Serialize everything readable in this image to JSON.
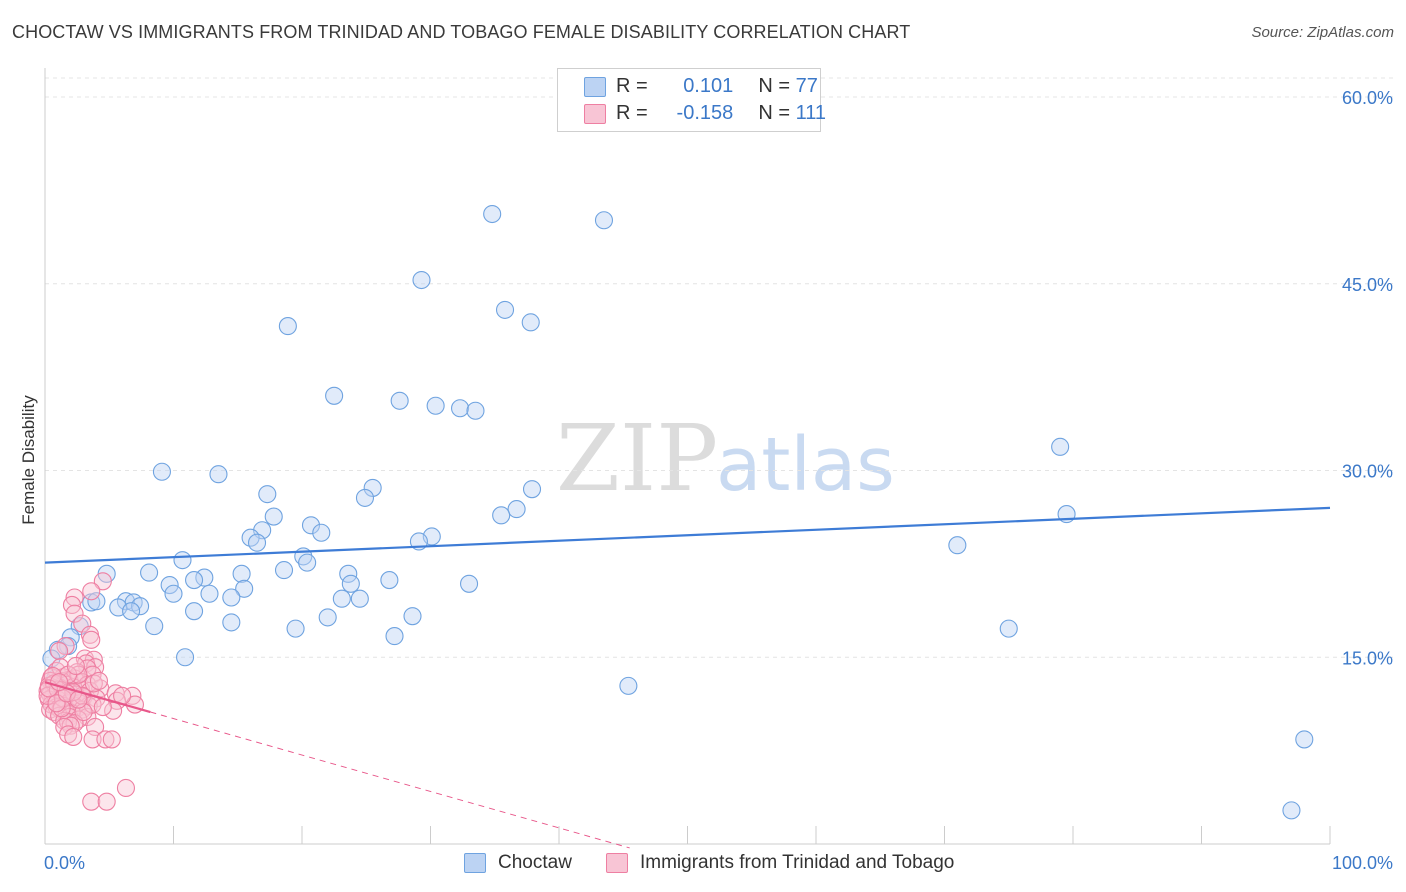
{
  "title": "CHOCTAW VS IMMIGRANTS FROM TRINIDAD AND TOBAGO FEMALE DISABILITY CORRELATION CHART",
  "source": "Source: ZipAtlas.com",
  "watermark": {
    "zip": "ZIP",
    "atlas": "atlas"
  },
  "legend": {
    "rows": [
      {
        "r_label": "R =",
        "r_value": "0.101",
        "n_label": "N =",
        "n_value": "77",
        "color": "#6fa3e0",
        "fill": "#bcd3f3"
      },
      {
        "r_label": "R =",
        "r_value": "-0.158",
        "n_label": "N =",
        "n_value": "111",
        "color": "#ee7fa2",
        "fill": "#f8c5d5"
      }
    ]
  },
  "bottom_legend": [
    {
      "label": "Choctaw",
      "color": "#6fa3e0",
      "fill": "#bcd3f3"
    },
    {
      "label": "Immigrants from Trinidad and Tobago",
      "color": "#ee7fa2",
      "fill": "#f8c5d5"
    }
  ],
  "chart_data": {
    "type": "scatter",
    "title": "CHOCTAW VS IMMIGRANTS FROM TRINIDAD AND TOBAGO FEMALE DISABILITY CORRELATION CHART",
    "xlabel": "",
    "ylabel": "Female Disability",
    "xlim": [
      0,
      100
    ],
    "ylim": [
      0,
      60
    ],
    "x_tick_labels": [
      "0.0%",
      "100.0%"
    ],
    "y_ticks": [
      15,
      30,
      45,
      60
    ],
    "y_tick_labels": [
      "15.0%",
      "30.0%",
      "45.0%",
      "60.0%"
    ],
    "grid": true,
    "legend_position": "top-center",
    "colors": {
      "choctaw": "#3e7cd6",
      "trinidad": "#e8578a",
      "tick_label": "#3b78c8"
    },
    "series": [
      {
        "name": "Choctaw",
        "color": "#6fa3e0",
        "trend": {
          "x": [
            0,
            100
          ],
          "y": [
            22.6,
            27.0
          ],
          "dashed_x": null
        },
        "points": [
          [
            34.8,
            50.6
          ],
          [
            43.5,
            50.1
          ],
          [
            29.3,
            45.3
          ],
          [
            35.8,
            42.9
          ],
          [
            37.8,
            41.9
          ],
          [
            18.9,
            41.6
          ],
          [
            22.5,
            36.0
          ],
          [
            27.6,
            35.6
          ],
          [
            30.4,
            35.2
          ],
          [
            32.3,
            35.0
          ],
          [
            33.5,
            34.8
          ],
          [
            79.0,
            31.9
          ],
          [
            9.1,
            29.9
          ],
          [
            13.5,
            29.7
          ],
          [
            25.5,
            28.6
          ],
          [
            17.3,
            28.1
          ],
          [
            24.9,
            27.8
          ],
          [
            37.9,
            28.5
          ],
          [
            36.7,
            26.9
          ],
          [
            35.5,
            26.4
          ],
          [
            79.5,
            26.5
          ],
          [
            17.8,
            26.3
          ],
          [
            20.7,
            25.6
          ],
          [
            16.9,
            25.2
          ],
          [
            21.5,
            25.0
          ],
          [
            16.0,
            24.6
          ],
          [
            30.1,
            24.7
          ],
          [
            29.1,
            24.3
          ],
          [
            16.5,
            24.2
          ],
          [
            71.0,
            24.0
          ],
          [
            10.7,
            22.8
          ],
          [
            20.1,
            23.1
          ],
          [
            20.4,
            22.6
          ],
          [
            18.6,
            22.0
          ],
          [
            23.6,
            21.7
          ],
          [
            8.1,
            21.8
          ],
          [
            12.4,
            21.4
          ],
          [
            15.3,
            21.7
          ],
          [
            4.8,
            21.7
          ],
          [
            26.8,
            21.2
          ],
          [
            11.6,
            21.2
          ],
          [
            23.8,
            20.9
          ],
          [
            9.7,
            20.8
          ],
          [
            33.0,
            20.9
          ],
          [
            15.5,
            20.5
          ],
          [
            12.8,
            20.1
          ],
          [
            10.0,
            20.1
          ],
          [
            14.5,
            19.8
          ],
          [
            23.1,
            19.7
          ],
          [
            24.5,
            19.7
          ],
          [
            6.3,
            19.5
          ],
          [
            3.6,
            19.4
          ],
          [
            4.0,
            19.5
          ],
          [
            6.9,
            19.4
          ],
          [
            7.4,
            19.1
          ],
          [
            5.7,
            19.0
          ],
          [
            6.7,
            18.7
          ],
          [
            11.6,
            18.7
          ],
          [
            28.6,
            18.3
          ],
          [
            22.0,
            18.2
          ],
          [
            14.5,
            17.8
          ],
          [
            8.5,
            17.5
          ],
          [
            19.5,
            17.3
          ],
          [
            75.0,
            17.3
          ],
          [
            2.7,
            17.5
          ],
          [
            27.2,
            16.7
          ],
          [
            2.0,
            16.6
          ],
          [
            1.8,
            15.9
          ],
          [
            1.0,
            15.6
          ],
          [
            10.9,
            15.0
          ],
          [
            0.5,
            14.9
          ],
          [
            0.8,
            13.3
          ],
          [
            45.4,
            12.7
          ],
          [
            1.6,
            12.6
          ],
          [
            2.0,
            12.4
          ],
          [
            98.0,
            8.4
          ],
          [
            97.0,
            2.7
          ]
        ]
      },
      {
        "name": "Immigrants from Trinidad and Tobago",
        "color": "#ee7fa2",
        "trend": {
          "x": [
            0,
            8.2
          ],
          "y": [
            13.0,
            10.6
          ],
          "dashed_x": [
            8.2,
            45.5
          ]
        },
        "points": [
          [
            4.5,
            21.1
          ],
          [
            3.6,
            20.3
          ],
          [
            2.3,
            19.8
          ],
          [
            2.1,
            19.2
          ],
          [
            2.3,
            18.5
          ],
          [
            2.9,
            17.7
          ],
          [
            3.5,
            16.8
          ],
          [
            1.6,
            15.9
          ],
          [
            3.6,
            16.4
          ],
          [
            1.1,
            15.5
          ],
          [
            3.1,
            14.9
          ],
          [
            3.8,
            14.8
          ],
          [
            3.2,
            14.5
          ],
          [
            3.9,
            14.2
          ],
          [
            3.3,
            14.1
          ],
          [
            0.9,
            13.9
          ],
          [
            2.5,
            13.8
          ],
          [
            3.7,
            13.6
          ],
          [
            0.5,
            13.4
          ],
          [
            1.4,
            13.4
          ],
          [
            2.3,
            13.3
          ],
          [
            1.9,
            13.2
          ],
          [
            0.4,
            13.1
          ],
          [
            1.3,
            13.1
          ],
          [
            2.9,
            13.0
          ],
          [
            0.6,
            12.8
          ],
          [
            1.7,
            12.8
          ],
          [
            3.3,
            12.8
          ],
          [
            0.3,
            12.7
          ],
          [
            1.1,
            12.6
          ],
          [
            2.2,
            12.6
          ],
          [
            4.3,
            12.5
          ],
          [
            0.7,
            12.5
          ],
          [
            1.5,
            12.4
          ],
          [
            2.8,
            12.4
          ],
          [
            0.2,
            12.3
          ],
          [
            0.9,
            12.2
          ],
          [
            1.9,
            12.2
          ],
          [
            3.5,
            12.3
          ],
          [
            5.5,
            12.1
          ],
          [
            0.4,
            12.0
          ],
          [
            1.3,
            12.0
          ],
          [
            2.4,
            12.0
          ],
          [
            6.8,
            11.9
          ],
          [
            0.6,
            11.8
          ],
          [
            1.6,
            11.8
          ],
          [
            3.0,
            11.8
          ],
          [
            4.0,
            11.7
          ],
          [
            0.3,
            11.6
          ],
          [
            1.0,
            11.6
          ],
          [
            2.0,
            11.5
          ],
          [
            5.6,
            11.5
          ],
          [
            0.8,
            11.4
          ],
          [
            1.8,
            11.3
          ],
          [
            2.7,
            11.3
          ],
          [
            7.0,
            11.2
          ],
          [
            0.5,
            11.2
          ],
          [
            1.4,
            11.1
          ],
          [
            2.3,
            11.1
          ],
          [
            3.4,
            11.1
          ],
          [
            0.9,
            11.0
          ],
          [
            1.6,
            10.9
          ],
          [
            2.5,
            10.9
          ],
          [
            0.4,
            10.8
          ],
          [
            1.2,
            10.8
          ],
          [
            2.9,
            10.8
          ],
          [
            5.3,
            10.7
          ],
          [
            0.7,
            10.6
          ],
          [
            1.7,
            10.5
          ],
          [
            2.1,
            10.5
          ],
          [
            1.1,
            10.3
          ],
          [
            1.9,
            10.2
          ],
          [
            3.3,
            10.2
          ],
          [
            2.6,
            10.0
          ],
          [
            1.5,
            9.9
          ],
          [
            1.8,
            9.8
          ],
          [
            2.3,
            9.7
          ],
          [
            2.0,
            9.5
          ],
          [
            1.5,
            9.4
          ],
          [
            3.9,
            9.4
          ],
          [
            1.8,
            8.8
          ],
          [
            2.2,
            8.6
          ],
          [
            3.7,
            8.4
          ],
          [
            4.7,
            8.4
          ],
          [
            5.2,
            8.4
          ],
          [
            6.3,
            4.5
          ],
          [
            3.6,
            3.4
          ],
          [
            4.8,
            3.4
          ],
          [
            2.6,
            13.6
          ],
          [
            1.2,
            14.2
          ],
          [
            0.7,
            12.9
          ],
          [
            1.8,
            13.6
          ],
          [
            2.9,
            11.9
          ],
          [
            3.7,
            11.2
          ],
          [
            4.5,
            11.0
          ],
          [
            6.0,
            11.9
          ],
          [
            0.2,
            11.9
          ],
          [
            1.0,
            12.4
          ],
          [
            2.2,
            12.2
          ],
          [
            3.0,
            10.6
          ],
          [
            1.4,
            11.7
          ],
          [
            0.6,
            13.5
          ],
          [
            2.4,
            14.3
          ],
          [
            1.3,
            10.9
          ],
          [
            0.9,
            11.3
          ],
          [
            1.7,
            12.1
          ],
          [
            2.6,
            11.6
          ],
          [
            3.8,
            12.9
          ],
          [
            4.2,
            13.1
          ],
          [
            0.3,
            12.5
          ],
          [
            1.1,
            13.0
          ]
        ]
      }
    ]
  }
}
